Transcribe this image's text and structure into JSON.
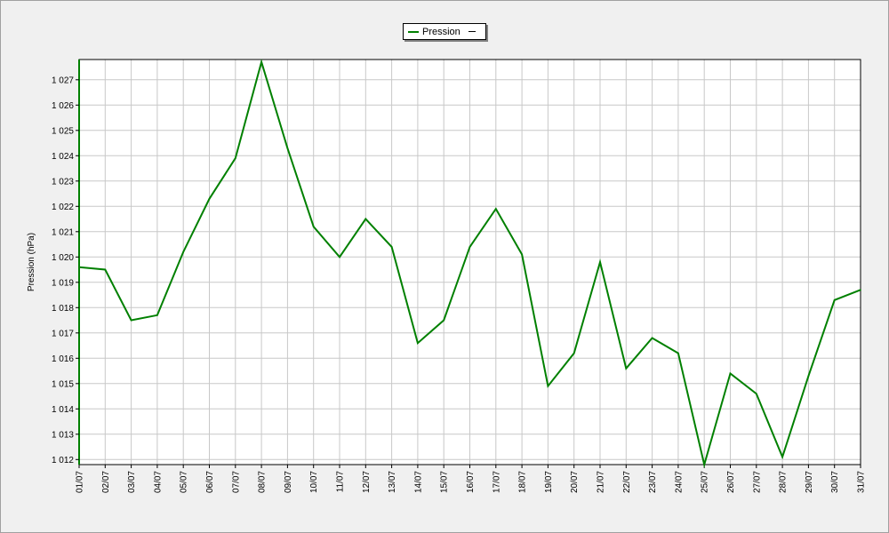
{
  "legend": {
    "series_name": "Pression"
  },
  "chart_data": {
    "type": "line",
    "ylabel": "Pression (hPa)",
    "xlabel": "",
    "title": "",
    "ylim": [
      1011.8,
      1027.8
    ],
    "y_ticks": [
      1012,
      1013,
      1014,
      1015,
      1016,
      1017,
      1018,
      1019,
      1020,
      1021,
      1022,
      1023,
      1024,
      1025,
      1026,
      1027
    ],
    "y_tick_labels": [
      "1 012",
      "1 013",
      "1 014",
      "1 015",
      "1 016",
      "1 017",
      "1 018",
      "1 019",
      "1 020",
      "1 021",
      "1 022",
      "1 023",
      "1 024",
      "1 025",
      "1 026",
      "1 027"
    ],
    "categories": [
      "01/07",
      "02/07",
      "03/07",
      "04/07",
      "05/07",
      "06/07",
      "07/07",
      "08/07",
      "09/07",
      "10/07",
      "11/07",
      "12/07",
      "13/07",
      "14/07",
      "15/07",
      "16/07",
      "17/07",
      "18/07",
      "19/07",
      "20/07",
      "21/07",
      "22/07",
      "23/07",
      "24/07",
      "25/07",
      "26/07",
      "27/07",
      "28/07",
      "29/07",
      "30/07",
      "31/07"
    ],
    "grid": true,
    "legend_position": "top-center",
    "series": [
      {
        "name": "Pression",
        "color": "#008000",
        "values": [
          1019.6,
          1019.5,
          1017.5,
          1017.7,
          1020.2,
          1022.3,
          1023.9,
          1027.7,
          1024.3,
          1021.2,
          1020.0,
          1021.5,
          1020.4,
          1016.6,
          1017.5,
          1020.4,
          1021.9,
          1020.1,
          1014.9,
          1016.2,
          1019.8,
          1015.6,
          1016.8,
          1016.2,
          1011.8,
          1015.4,
          1014.6,
          1012.1,
          1015.3,
          1018.3,
          1018.7
        ]
      }
    ]
  }
}
